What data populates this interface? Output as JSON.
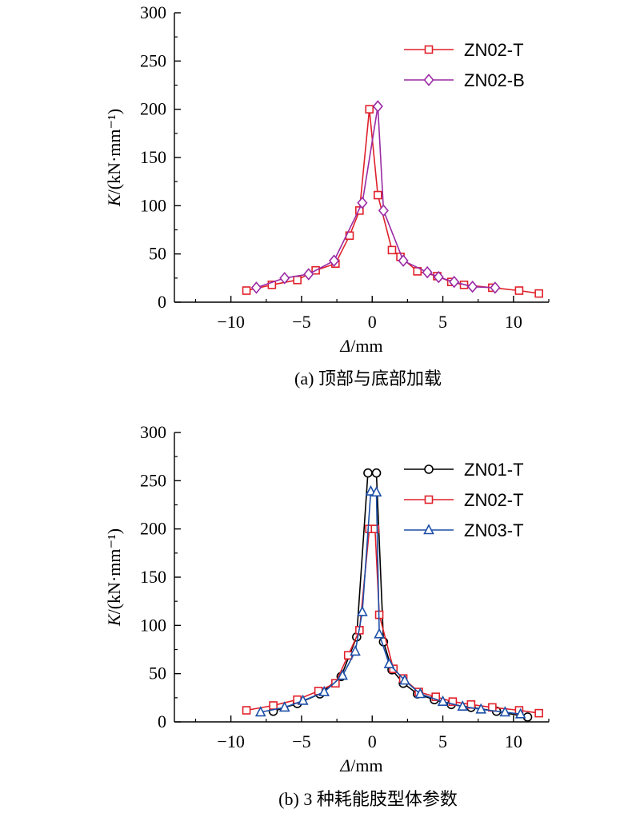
{
  "chart_data": [
    {
      "type": "line",
      "caption": "(a) 顶部与底部加载",
      "xlabel_sym": "Δ",
      "xlabel_unit": "/mm",
      "ylabel_sym": "K",
      "ylabel_unit": "/(kN·mm⁻¹)",
      "xlim": [
        -14,
        12.5
      ],
      "ylim": [
        0,
        300
      ],
      "xticks": [
        -10,
        -5,
        0,
        5,
        10
      ],
      "xtick_labels": [
        "−10",
        "−5",
        "0",
        "5",
        "10"
      ],
      "yticks": [
        0,
        50,
        100,
        150,
        200,
        250,
        300
      ],
      "ytick_labels": [
        "0",
        "50",
        "100",
        "150",
        "200",
        "250",
        "300"
      ],
      "legend_position": "top-right",
      "series": [
        {
          "name": "ZN02-T",
          "color": "#e0202a",
          "marker": "square",
          "x": [
            -8.9,
            -7.1,
            -5.3,
            -4.0,
            -2.6,
            -1.6,
            -0.9,
            -0.2,
            0.4,
            1.4,
            2.0,
            3.2,
            4.6,
            5.6,
            6.5,
            8.5,
            10.4,
            11.8
          ],
          "y": [
            12,
            18,
            23,
            33,
            40,
            69,
            95,
            200,
            111,
            54,
            47,
            32,
            27,
            21,
            18,
            15,
            12,
            9
          ]
        },
        {
          "name": "ZN02-B",
          "color": "#9a2aa4",
          "marker": "diamond",
          "x": [
            -8.2,
            -6.2,
            -4.5,
            -2.7,
            -0.7,
            0.4,
            0.8,
            2.2,
            3.9,
            4.7,
            5.8,
            7.1,
            8.7
          ],
          "y": [
            15,
            25,
            29,
            43,
            103,
            203,
            95,
            43,
            31,
            26,
            21,
            16,
            15
          ]
        }
      ]
    },
    {
      "type": "line",
      "caption": "(b) 3 种耗能肢型体参数",
      "xlabel_sym": "Δ",
      "xlabel_unit": "/mm",
      "ylabel_sym": "K",
      "ylabel_unit": "/(kN·mm⁻¹)",
      "xlim": [
        -14,
        12.5
      ],
      "ylim": [
        0,
        300
      ],
      "xticks": [
        -10,
        -5,
        0,
        5,
        10
      ],
      "xtick_labels": [
        "−10",
        "−5",
        "0",
        "5",
        "10"
      ],
      "yticks": [
        0,
        50,
        100,
        150,
        200,
        250,
        300
      ],
      "ytick_labels": [
        "0",
        "50",
        "100",
        "150",
        "200",
        "250",
        "300"
      ],
      "legend_position": "top-right",
      "series": [
        {
          "name": "ZN01-T",
          "color": "#000000",
          "marker": "circle",
          "x": [
            -7.0,
            -5.3,
            -3.7,
            -2.2,
            -1.1,
            -0.3,
            0.3,
            0.8,
            1.4,
            2.2,
            3.2,
            4.4,
            5.6,
            7.0,
            8.8,
            11.0
          ],
          "y": [
            11,
            19,
            29,
            47,
            88,
            258,
            258,
            83,
            54,
            40,
            29,
            23,
            18,
            15,
            11,
            5
          ]
        },
        {
          "name": "ZN02-T",
          "color": "#e0202a",
          "marker": "square",
          "x": [
            -8.9,
            -7.0,
            -5.3,
            -3.8,
            -2.6,
            -1.7,
            -0.9,
            -0.2,
            0.2,
            0.5,
            1.5,
            2.2,
            3.3,
            4.5,
            5.7,
            7.0,
            8.5,
            10.4,
            11.8
          ],
          "y": [
            12,
            17,
            23,
            32,
            40,
            69,
            95,
            200,
            200,
            111,
            55,
            45,
            31,
            26,
            21,
            18,
            15,
            12,
            9
          ]
        },
        {
          "name": "ZN03-T",
          "color": "#1c4fa8",
          "marker": "triangle",
          "x": [
            -7.9,
            -6.2,
            -4.9,
            -3.4,
            -2.1,
            -1.2,
            -0.7,
            -0.1,
            0.3,
            0.5,
            1.2,
            2.3,
            3.4,
            5.0,
            6.4,
            7.7,
            9.4,
            10.5
          ],
          "y": [
            10,
            15,
            22,
            31,
            48,
            73,
            114,
            239,
            238,
            91,
            60,
            43,
            29,
            21,
            16,
            13,
            10,
            8
          ]
        }
      ]
    }
  ]
}
